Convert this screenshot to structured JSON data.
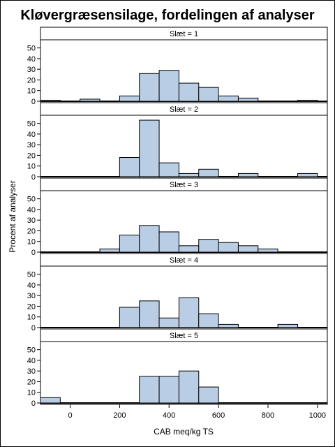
{
  "chart_data": {
    "type": "bar",
    "title": "Kløvergræsensilage, fordelingen af analyser",
    "xlabel": "CAB meq/kg TS",
    "ylabel": "Procent af analyser",
    "xlim": [
      -120,
      1040
    ],
    "ylim": [
      0,
      55
    ],
    "xticks": [
      0,
      200,
      400,
      600,
      800,
      1000
    ],
    "yticks": [
      0,
      10,
      20,
      30,
      40,
      50
    ],
    "bin_width": 80,
    "colors": {
      "bar_fill": "#b9cde5",
      "bar_stroke": "#000000"
    },
    "panels": [
      {
        "label": "Slæt = 1",
        "bins": [
          {
            "x0": -120,
            "x1": -40,
            "value": 1
          },
          {
            "x0": 40,
            "x1": 120,
            "value": 2
          },
          {
            "x0": 200,
            "x1": 280,
            "value": 5
          },
          {
            "x0": 280,
            "x1": 360,
            "value": 26
          },
          {
            "x0": 360,
            "x1": 440,
            "value": 29
          },
          {
            "x0": 440,
            "x1": 520,
            "value": 17
          },
          {
            "x0": 520,
            "x1": 600,
            "value": 13
          },
          {
            "x0": 600,
            "x1": 680,
            "value": 5
          },
          {
            "x0": 680,
            "x1": 760,
            "value": 3
          },
          {
            "x0": 920,
            "x1": 1000,
            "value": 1
          }
        ]
      },
      {
        "label": "Slæt = 2",
        "bins": [
          {
            "x0": 200,
            "x1": 280,
            "value": 18
          },
          {
            "x0": 280,
            "x1": 360,
            "value": 53
          },
          {
            "x0": 360,
            "x1": 440,
            "value": 13
          },
          {
            "x0": 440,
            "x1": 520,
            "value": 3
          },
          {
            "x0": 520,
            "x1": 600,
            "value": 7
          },
          {
            "x0": 680,
            "x1": 760,
            "value": 3
          },
          {
            "x0": 920,
            "x1": 1000,
            "value": 3
          }
        ]
      },
      {
        "label": "Slæt = 3",
        "bins": [
          {
            "x0": 120,
            "x1": 200,
            "value": 3
          },
          {
            "x0": 200,
            "x1": 280,
            "value": 16
          },
          {
            "x0": 280,
            "x1": 360,
            "value": 25
          },
          {
            "x0": 360,
            "x1": 440,
            "value": 19
          },
          {
            "x0": 440,
            "x1": 520,
            "value": 6
          },
          {
            "x0": 520,
            "x1": 600,
            "value": 12
          },
          {
            "x0": 600,
            "x1": 680,
            "value": 9
          },
          {
            "x0": 680,
            "x1": 760,
            "value": 6
          },
          {
            "x0": 760,
            "x1": 840,
            "value": 3
          }
        ]
      },
      {
        "label": "Slæt = 4",
        "bins": [
          {
            "x0": 200,
            "x1": 280,
            "value": 19
          },
          {
            "x0": 280,
            "x1": 360,
            "value": 25
          },
          {
            "x0": 360,
            "x1": 440,
            "value": 9
          },
          {
            "x0": 440,
            "x1": 520,
            "value": 28
          },
          {
            "x0": 520,
            "x1": 600,
            "value": 13
          },
          {
            "x0": 600,
            "x1": 680,
            "value": 3
          },
          {
            "x0": 840,
            "x1": 920,
            "value": 3
          }
        ]
      },
      {
        "label": "Slæt = 5",
        "bins": [
          {
            "x0": -120,
            "x1": -40,
            "value": 5
          },
          {
            "x0": 280,
            "x1": 360,
            "value": 25
          },
          {
            "x0": 360,
            "x1": 440,
            "value": 25
          },
          {
            "x0": 440,
            "x1": 520,
            "value": 30
          },
          {
            "x0": 520,
            "x1": 600,
            "value": 15
          }
        ]
      }
    ]
  }
}
